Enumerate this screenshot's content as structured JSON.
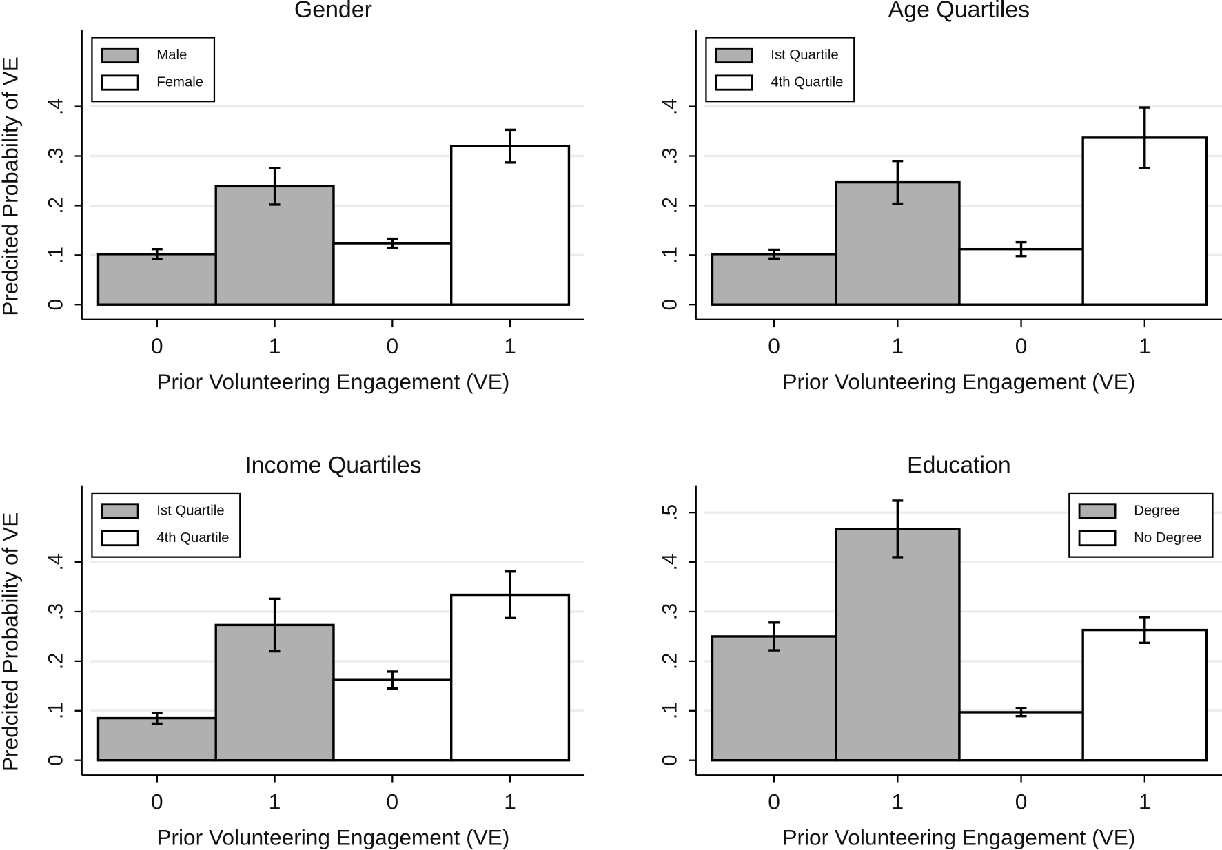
{
  "chart_data": [
    {
      "type": "bar",
      "title": "Gender",
      "x_label": "Prior Volunteering Engagement (VE)",
      "y_label": "Predcited Probability of VE",
      "categories": [
        "0",
        "1",
        "0",
        "1"
      ],
      "series": [
        {
          "name": "Male",
          "color": "#b0b0b0",
          "values": [
            0.102,
            0.239,
            null,
            null
          ],
          "errors": [
            0.01,
            0.037,
            null,
            null
          ]
        },
        {
          "name": "Female",
          "color": "#ffffff",
          "values": [
            null,
            null,
            0.124,
            0.32
          ],
          "errors": [
            null,
            null,
            0.009,
            0.033
          ]
        }
      ],
      "ylim": [
        -0.03,
        0.555
      ],
      "yticks": [
        0,
        {
          "value": 0.1,
          "label": ".1"
        },
        {
          "value": 0.2,
          "label": ".2"
        },
        {
          "value": 0.3,
          "label": ".3"
        },
        {
          "value": 0.4,
          "label": ".4"
        }
      ],
      "grid": true,
      "legend": "upper left"
    },
    {
      "type": "bar",
      "title": "Age Quartiles",
      "x_label": "Prior Volunteering Engagement (VE)",
      "categories": [
        "0",
        "1",
        "0",
        "1"
      ],
      "series": [
        {
          "name": "Ist Quartile",
          "color": "#b0b0b0",
          "values": [
            0.102,
            0.247,
            null,
            null
          ],
          "errors": [
            0.009,
            0.043,
            null,
            null
          ]
        },
        {
          "name": "4th Quartile",
          "color": "#ffffff",
          "values": [
            null,
            null,
            0.112,
            0.337
          ],
          "errors": [
            null,
            null,
            0.014,
            0.061
          ]
        }
      ],
      "ylim": [
        -0.03,
        0.555
      ],
      "yticks": [
        0,
        {
          "value": 0.1,
          "label": ".1"
        },
        {
          "value": 0.2,
          "label": ".2"
        },
        {
          "value": 0.3,
          "label": ".3"
        },
        {
          "value": 0.4,
          "label": ".4"
        }
      ],
      "grid": true,
      "legend": "upper left"
    },
    {
      "type": "bar",
      "title": "Income Quartiles",
      "x_label": "Prior Volunteering Engagement (VE)",
      "y_label": "Predcited Probability of VE",
      "categories": [
        "0",
        "1",
        "0",
        "1"
      ],
      "series": [
        {
          "name": "Ist Quartile",
          "color": "#b0b0b0",
          "values": [
            0.085,
            0.273,
            null,
            null
          ],
          "errors": [
            0.011,
            0.053,
            null,
            null
          ]
        },
        {
          "name": "4th Quartile",
          "color": "#ffffff",
          "values": [
            null,
            null,
            0.162,
            0.334
          ],
          "errors": [
            null,
            null,
            0.017,
            0.047
          ]
        }
      ],
      "ylim": [
        -0.03,
        0.555
      ],
      "yticks": [
        0,
        {
          "value": 0.1,
          "label": ".1"
        },
        {
          "value": 0.2,
          "label": ".2"
        },
        {
          "value": 0.3,
          "label": ".3"
        },
        {
          "value": 0.4,
          "label": ".4"
        }
      ],
      "grid": true,
      "legend": "upper left"
    },
    {
      "type": "bar",
      "title": "Education",
      "x_label": "Prior Volunteering Engagement (VE)",
      "categories": [
        "0",
        "1",
        "0",
        "1"
      ],
      "series": [
        {
          "name": "Degree",
          "color": "#b0b0b0",
          "values": [
            0.25,
            0.467,
            null,
            null
          ],
          "errors": [
            0.028,
            0.057,
            null,
            null
          ]
        },
        {
          "name": "No Degree",
          "color": "#ffffff",
          "values": [
            null,
            null,
            0.097,
            0.263
          ],
          "errors": [
            null,
            null,
            0.008,
            0.026
          ]
        }
      ],
      "ylim": [
        -0.03,
        0.555
      ],
      "yticks": [
        0,
        {
          "value": 0.1,
          "label": ".1"
        },
        {
          "value": 0.2,
          "label": ".2"
        },
        {
          "value": 0.3,
          "label": ".3"
        },
        {
          "value": 0.4,
          "label": ".4"
        },
        {
          "value": 0.5,
          "label": ".5"
        }
      ],
      "grid": true,
      "legend": "upper right"
    }
  ]
}
